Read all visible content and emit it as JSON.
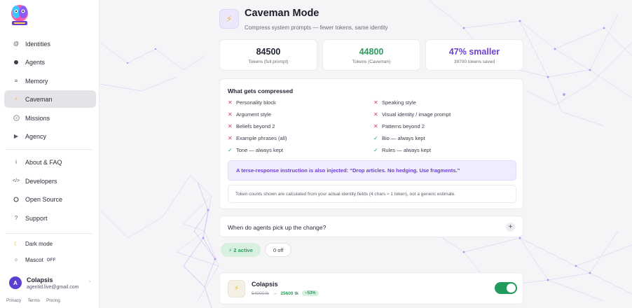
{
  "brand": {
    "logo_icon": "agentid-logo-icon"
  },
  "sidebar": {
    "items": [
      {
        "label": "Identities",
        "icon": "at-icon"
      },
      {
        "label": "Agents",
        "icon": "dot-icon"
      },
      {
        "label": "Memory",
        "icon": "list-icon"
      },
      {
        "label": "Caveman",
        "icon": "bolt-icon",
        "active": true
      },
      {
        "label": "Missions",
        "icon": "target-icon"
      },
      {
        "label": "Agency",
        "icon": "play-icon"
      }
    ],
    "secondary": [
      {
        "label": "About & FAQ",
        "icon": "info-icon"
      },
      {
        "label": "Developers",
        "icon": "code-icon"
      },
      {
        "label": "Open Source",
        "icon": "circle-icon"
      },
      {
        "label": "Support",
        "icon": "question-icon"
      }
    ],
    "settings": {
      "dark_mode_label": "Dark mode",
      "mascot_label": "Mascot",
      "mascot_state": "OFF"
    },
    "user": {
      "initial": "A",
      "name": "Colapsis",
      "email": "agentid.live@gmail.com"
    },
    "footer": {
      "privacy": "Privacy",
      "terms": "Terms",
      "pricing": "Pricing"
    }
  },
  "page": {
    "title": "Caveman Mode",
    "subtitle": "Compress system prompts — fewer tokens, same identity"
  },
  "stats": [
    {
      "value": "84500",
      "label": "Tokens (full prompt)",
      "color": "#1f2230"
    },
    {
      "value": "44800",
      "label": "Tokens (Caveman)",
      "color": "#2e9b5f"
    },
    {
      "value": "47% smaller",
      "label": "39700 tokens saved",
      "color": "#6b40d6"
    }
  ],
  "compressed": {
    "title": "What gets compressed",
    "left": [
      {
        "label": "Personality block",
        "status": "removed"
      },
      {
        "label": "Argument style",
        "status": "removed"
      },
      {
        "label": "Beliefs beyond 2",
        "status": "removed"
      },
      {
        "label": "Example phrases (all)",
        "status": "removed"
      },
      {
        "label": "Tone — always kept",
        "status": "kept"
      }
    ],
    "right": [
      {
        "label": "Speaking style",
        "status": "removed"
      },
      {
        "label": "Visual identity / image prompt",
        "status": "removed"
      },
      {
        "label": "Patterns beyond 2",
        "status": "removed"
      },
      {
        "label": "Bio — always kept",
        "status": "kept"
      },
      {
        "label": "Rules — always kept",
        "status": "kept"
      }
    ],
    "injection_note": "A terse-response instruction is also injected: “Drop articles. No hedging. Use fragments.”",
    "footnote": "Token counts shown are calculated from your actual identity fields (4 chars ≈ 1 token), not a generic estimate."
  },
  "faq": {
    "question": "When do agents pick up the change?",
    "expand_icon": "plus-icon"
  },
  "filters": {
    "active_label": "⚡ 2 active",
    "off_label": "0 off"
  },
  "agent": {
    "name": "Colapsis",
    "tokens_before": "54000 tk",
    "arrow": "→",
    "tokens_after": "25600 tk",
    "saving": "−53%",
    "enabled": true,
    "icon": "bolt-icon"
  },
  "colors": {
    "accent_purple": "#6b40d6",
    "success_green": "#2e9b5f",
    "danger_red": "#d9415a",
    "toggle_on": "#219a5c"
  }
}
